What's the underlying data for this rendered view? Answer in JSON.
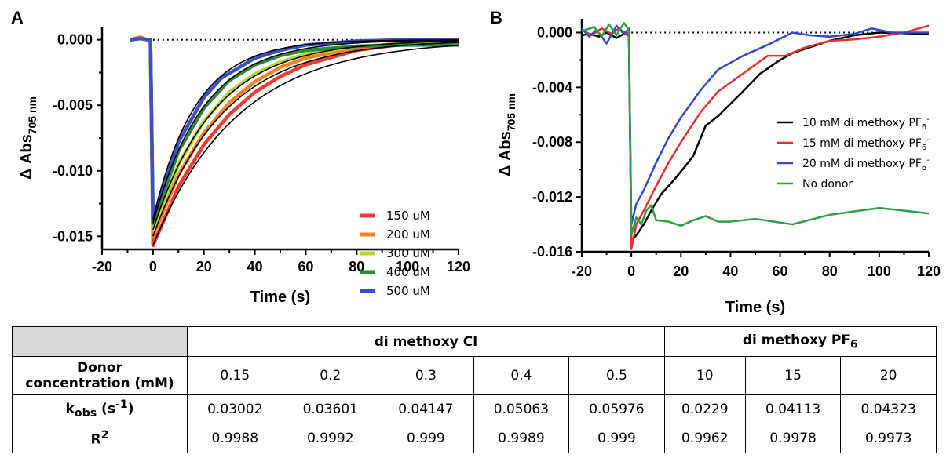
{
  "chart_data": [
    {
      "panel": "A",
      "type": "line",
      "xlabel": "Time (s)",
      "ylabel": "Δ Abs",
      "ylabel_sub": "705 nm",
      "xlim": [
        -20,
        120
      ],
      "ylim": [
        -0.016,
        0.001
      ],
      "xticks": [
        "-20",
        "0",
        "20",
        "40",
        "60",
        "80",
        "100",
        "120"
      ],
      "yticks": [
        "0.000",
        "-0.005",
        "-0.010",
        "-0.015"
      ],
      "legend_position": "lower-right",
      "series": [
        {
          "name": "150 uM",
          "color": "#f03c32",
          "values": [
            [
              -9,
              0.0
            ],
            [
              -5,
              0.0001
            ],
            [
              -2,
              0.0
            ],
            [
              -1,
              -0.0001
            ],
            [
              0,
              -0.0157
            ],
            [
              10,
              -0.0112
            ],
            [
              20,
              -0.008
            ],
            [
              30,
              -0.0057
            ],
            [
              40,
              -0.004
            ],
            [
              50,
              -0.0028
            ],
            [
              60,
              -0.0019
            ],
            [
              80,
              -0.0008
            ],
            [
              100,
              -0.0003
            ],
            [
              120,
              -0.0001
            ]
          ]
        },
        {
          "name": "200 uM",
          "color": "#f5821e",
          "values": [
            [
              -9,
              0.0
            ],
            [
              -5,
              0.0002
            ],
            [
              -2,
              0.0
            ],
            [
              -1,
              0.0
            ],
            [
              0,
              -0.015
            ],
            [
              10,
              -0.0103
            ],
            [
              20,
              -0.0071
            ],
            [
              30,
              -0.0048
            ],
            [
              40,
              -0.0032
            ],
            [
              50,
              -0.0021
            ],
            [
              60,
              -0.0014
            ],
            [
              80,
              -0.0006
            ],
            [
              100,
              -0.0002
            ],
            [
              120,
              -0.0001
            ]
          ]
        },
        {
          "name": "300 uM",
          "color": "#b8d432",
          "values": [
            [
              -9,
              0.0
            ],
            [
              -5,
              0.0001
            ],
            [
              -2,
              0.0
            ],
            [
              -1,
              0.0
            ],
            [
              0,
              -0.0145
            ],
            [
              10,
              -0.0095
            ],
            [
              20,
              -0.0062
            ],
            [
              30,
              -0.004
            ],
            [
              40,
              -0.0026
            ],
            [
              50,
              -0.0017
            ],
            [
              60,
              -0.0011
            ],
            [
              80,
              -0.0005
            ],
            [
              100,
              -0.0003
            ],
            [
              120,
              -0.0003
            ]
          ]
        },
        {
          "name": "400 uM",
          "color": "#2a8a3c",
          "values": [
            [
              -9,
              0.0
            ],
            [
              -5,
              0.0001
            ],
            [
              -2,
              0.0
            ],
            [
              -1,
              0.0
            ],
            [
              0,
              -0.014
            ],
            [
              10,
              -0.0085
            ],
            [
              20,
              -0.0052
            ],
            [
              30,
              -0.0031
            ],
            [
              40,
              -0.0019
            ],
            [
              50,
              -0.0012
            ],
            [
              60,
              -0.0008
            ],
            [
              80,
              -0.0005
            ],
            [
              100,
              -0.0004
            ],
            [
              120,
              -0.0004
            ]
          ]
        },
        {
          "name": "500 uM",
          "color": "#3c4fc8",
          "values": [
            [
              -9,
              0.0
            ],
            [
              -5,
              0.0001
            ],
            [
              -2,
              0.0
            ],
            [
              -1,
              0.0
            ],
            [
              0,
              -0.0137
            ],
            [
              10,
              -0.0078
            ],
            [
              20,
              -0.0044
            ],
            [
              27,
              -0.0029
            ],
            [
              40,
              -0.0014
            ],
            [
              50,
              -0.0008
            ],
            [
              60,
              -0.0004
            ],
            [
              80,
              -0.0001
            ],
            [
              100,
              0.0
            ],
            [
              120,
              0.0
            ]
          ]
        }
      ],
      "fits": [
        {
          "A": -0.0157,
          "k": 0.03002
        },
        {
          "A": -0.015,
          "k": 0.03601
        },
        {
          "A": -0.0145,
          "k": 0.04147
        },
        {
          "A": -0.014,
          "k": 0.05063
        },
        {
          "A": -0.0137,
          "k": 0.05976
        }
      ]
    },
    {
      "panel": "B",
      "type": "line",
      "xlabel": "Time (s)",
      "ylabel": "Δ Abs",
      "ylabel_sub": "705 nm",
      "xlim": [
        -20,
        120
      ],
      "ylim": [
        -0.016,
        0.001
      ],
      "xticks": [
        "-20",
        "0",
        "20",
        "40",
        "60",
        "80",
        "100",
        "120"
      ],
      "yticks": [
        "0.000",
        "-0.004",
        "-0.008",
        "-0.012",
        "-0.016"
      ],
      "legend_position": "right",
      "series": [
        {
          "name": "10 mM di methoxy PF",
          "sub": "6",
          "sup": "-",
          "color": "#000000",
          "values": [
            [
              -20,
              -0.0002
            ],
            [
              -17,
              -0.0001
            ],
            [
              -13,
              -0.0003
            ],
            [
              -10,
              0.0
            ],
            [
              -6,
              -0.0004
            ],
            [
              -3,
              -0.0001
            ],
            [
              -1,
              -0.0002
            ],
            [
              0,
              -0.0152
            ],
            [
              2,
              -0.0148
            ],
            [
              5,
              -0.014
            ],
            [
              8,
              -0.013
            ],
            [
              12,
              -0.0118
            ],
            [
              17,
              -0.0108
            ],
            [
              22,
              -0.0097
            ],
            [
              25,
              -0.009
            ],
            [
              30,
              -0.0068
            ],
            [
              35,
              -0.0061
            ],
            [
              45,
              -0.0043
            ],
            [
              52,
              -0.003
            ],
            [
              60,
              -0.002
            ],
            [
              65,
              -0.0015
            ],
            [
              80,
              -0.0006
            ],
            [
              90,
              -0.0002
            ],
            [
              100,
              0.0
            ],
            [
              120,
              -0.0001
            ]
          ]
        },
        {
          "name": "15 mM di methoxy PF",
          "sub": "6",
          "sup": "-",
          "color": "#e8312f",
          "values": [
            [
              -20,
              0.0002
            ],
            [
              -16,
              -0.0002
            ],
            [
              -12,
              0.0003
            ],
            [
              -8,
              -0.0001
            ],
            [
              -5,
              0.0003
            ],
            [
              -2,
              -0.0001
            ],
            [
              -1,
              0.0
            ],
            [
              0,
              -0.0158
            ],
            [
              2,
              -0.014
            ],
            [
              5,
              -0.013
            ],
            [
              10,
              -0.0112
            ],
            [
              15,
              -0.0095
            ],
            [
              20,
              -0.008
            ],
            [
              28,
              -0.0058
            ],
            [
              35,
              -0.0043
            ],
            [
              45,
              -0.003
            ],
            [
              55,
              -0.0017
            ],
            [
              62,
              -0.0017
            ],
            [
              70,
              -0.0011
            ],
            [
              80,
              -0.0006
            ],
            [
              90,
              -0.0005
            ],
            [
              100,
              -0.0003
            ],
            [
              110,
              0.0
            ],
            [
              120,
              0.0005
            ]
          ]
        },
        {
          "name": "20 mM di methoxy PF",
          "sub": "6",
          "sup": "-",
          "color": "#3748c4",
          "values": [
            [
              -20,
              0.0003
            ],
            [
              -17,
              -0.0003
            ],
            [
              -14,
              0.0002
            ],
            [
              -10,
              -0.0008
            ],
            [
              -6,
              0.0005
            ],
            [
              -3,
              -0.0001
            ],
            [
              -1,
              0.0003
            ],
            [
              0,
              -0.014
            ],
            [
              2,
              -0.0125
            ],
            [
              5,
              -0.0115
            ],
            [
              10,
              -0.0095
            ],
            [
              15,
              -0.0077
            ],
            [
              20,
              -0.0062
            ],
            [
              28,
              -0.0042
            ],
            [
              35,
              -0.0027
            ],
            [
              45,
              -0.0017
            ],
            [
              55,
              -0.0009
            ],
            [
              65,
              0.0
            ],
            [
              72,
              -0.0002
            ],
            [
              80,
              -0.0003
            ],
            [
              90,
              -0.0001
            ],
            [
              97,
              0.0003
            ],
            [
              105,
              0.0
            ],
            [
              120,
              0.0
            ]
          ]
        },
        {
          "name": "No donor",
          "color": "#2f9e45",
          "values": [
            [
              -20,
              0.0001
            ],
            [
              -15,
              0.0004
            ],
            [
              -12,
              -0.0003
            ],
            [
              -9,
              0.0006
            ],
            [
              -6,
              -0.0002
            ],
            [
              -3,
              0.0007
            ],
            [
              -1,
              0.0002
            ],
            [
              0,
              -0.0148
            ],
            [
              2,
              -0.0135
            ],
            [
              4,
              -0.014
            ],
            [
              6,
              -0.013
            ],
            [
              8,
              -0.0126
            ],
            [
              10,
              -0.0137
            ],
            [
              15,
              -0.0138
            ],
            [
              20,
              -0.0141
            ],
            [
              25,
              -0.0137
            ],
            [
              30,
              -0.0134
            ],
            [
              35,
              -0.0138
            ],
            [
              40,
              -0.0138
            ],
            [
              50,
              -0.0136
            ],
            [
              65,
              -0.014
            ],
            [
              80,
              -0.0133
            ],
            [
              100,
              -0.0128
            ],
            [
              120,
              -0.0132
            ]
          ]
        }
      ]
    }
  ],
  "panels": {
    "a": "A",
    "b": "B"
  },
  "table": {
    "groups": [
      "di methoxy Cl",
      "di methoxy PF"
    ],
    "group_sub": "6",
    "rows": [
      {
        "label_lines": [
          "Donor",
          "concentration (mM)"
        ],
        "values": [
          "0.15",
          "0.2",
          "0.3",
          "0.4",
          "0.5",
          "10",
          "15",
          "20"
        ]
      },
      {
        "label": "k",
        "label_sub": "obs",
        "label_tail": " (s",
        "label_sup": "-1",
        "label_end": ")",
        "values": [
          "0.03002",
          "0.03601",
          "0.04147",
          "0.05063",
          "0.05976",
          "0.0229",
          "0.04113",
          "0.04323"
        ]
      },
      {
        "label": "R",
        "label_sup": "2",
        "values": [
          "0.9988",
          "0.9992",
          "0.999",
          "0.9989",
          "0.999",
          "0.9962",
          "0.9978",
          "0.9973"
        ]
      }
    ]
  }
}
